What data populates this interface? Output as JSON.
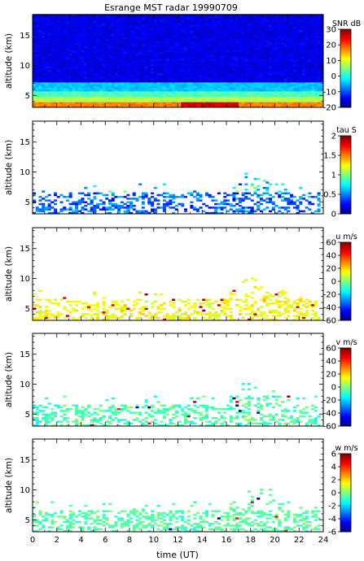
{
  "title": "Esrange MST radar 19990709",
  "x_label": "time (UT)",
  "chart_data": [
    {
      "type": "heatmap",
      "id": "snr",
      "ylabel": "altitude (km)",
      "xlim": [
        0,
        24
      ],
      "ylim": [
        3,
        18.5
      ],
      "xticks": [
        0,
        2,
        4,
        6,
        8,
        10,
        12,
        14,
        16,
        18,
        20,
        22,
        24
      ],
      "yticks": [
        5,
        10,
        15
      ],
      "colorbar": {
        "label": "SNR dB",
        "range": [
          -20,
          30
        ],
        "ticks": [
          -20,
          -10,
          0,
          10,
          20,
          30
        ]
      },
      "coverage": "full",
      "notes_visible": "Mostly -15 to -10 dB above 7 km, warming to 0-10 dB around 4-5 km and 20-30 dB near 3 km"
    },
    {
      "type": "heatmap",
      "id": "tau",
      "ylabel": "altitude (km)",
      "xlim": [
        0,
        24
      ],
      "ylim": [
        3,
        18.5
      ],
      "xticks": [
        0,
        2,
        4,
        6,
        8,
        10,
        12,
        14,
        16,
        18,
        20,
        22,
        24
      ],
      "yticks": [
        5,
        10,
        15
      ],
      "colorbar": {
        "label": "tau S",
        "range": [
          0,
          2
        ],
        "ticks": [
          0,
          0.5,
          1,
          1.5,
          2
        ]
      },
      "coverage": "sparse"
    },
    {
      "type": "heatmap",
      "id": "u",
      "ylabel": "altitude (km)",
      "xlim": [
        0,
        24
      ],
      "ylim": [
        3,
        18.5
      ],
      "xticks": [
        0,
        2,
        4,
        6,
        8,
        10,
        12,
        14,
        16,
        18,
        20,
        22,
        24
      ],
      "yticks": [
        5,
        10,
        15
      ],
      "colorbar": {
        "label": "u m/s",
        "range": [
          -60,
          60
        ],
        "ticks": [
          -60,
          -40,
          -20,
          0,
          20,
          40,
          60
        ]
      },
      "coverage": "sparse"
    },
    {
      "type": "heatmap",
      "id": "v",
      "ylabel": "altitude (km)",
      "xlim": [
        0,
        24
      ],
      "ylim": [
        3,
        18.5
      ],
      "xticks": [
        0,
        2,
        4,
        6,
        8,
        10,
        12,
        14,
        16,
        18,
        20,
        22,
        24
      ],
      "yticks": [
        5,
        10,
        15
      ],
      "colorbar": {
        "label": "v m/s",
        "range": [
          -60,
          60
        ],
        "ticks": [
          -60,
          -40,
          -20,
          0,
          20,
          40,
          60
        ]
      },
      "coverage": "sparse"
    },
    {
      "type": "heatmap",
      "id": "w",
      "ylabel": "altitude (km)",
      "xlim": [
        0,
        24
      ],
      "ylim": [
        3,
        18.5
      ],
      "xticks": [
        0,
        2,
        4,
        6,
        8,
        10,
        12,
        14,
        16,
        18,
        20,
        22,
        24
      ],
      "yticks": [
        5,
        10,
        15
      ],
      "colorbar": {
        "label": "w m/s",
        "range": [
          -6,
          6
        ],
        "ticks": [
          -6,
          -4,
          -2,
          0,
          2,
          4,
          6
        ]
      },
      "coverage": "sparse"
    }
  ]
}
